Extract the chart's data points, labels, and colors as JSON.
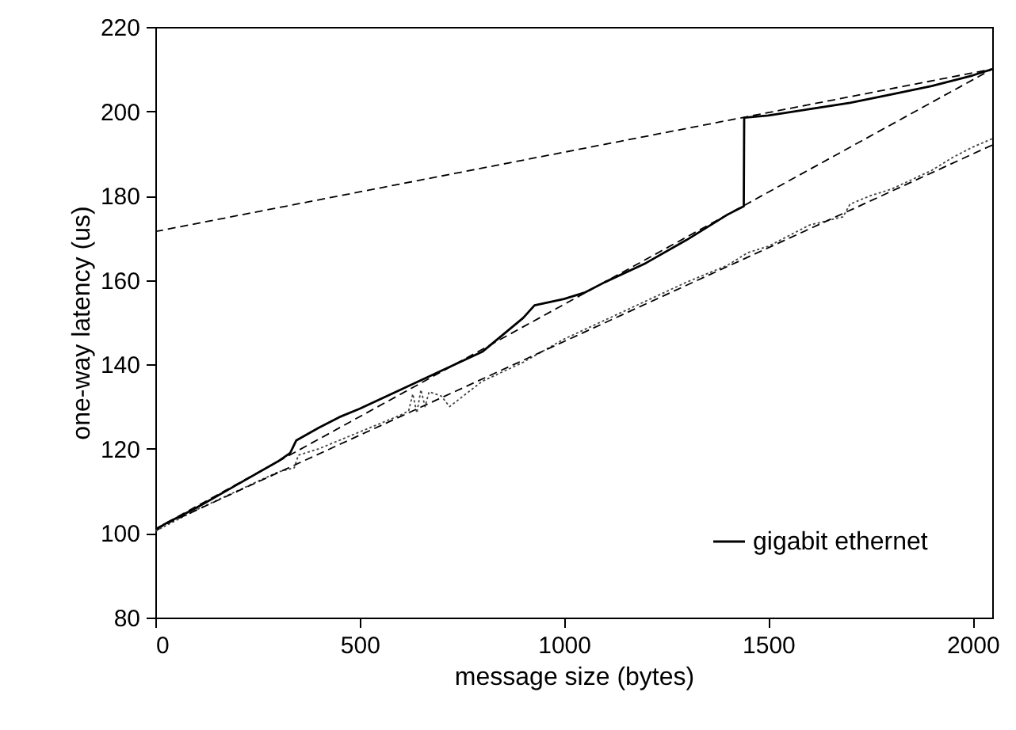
{
  "chart_data": {
    "type": "line",
    "xlabel": "message size (bytes)",
    "ylabel": "one-way latency (us)",
    "xlim": [
      0,
      2048
    ],
    "ylim": [
      80,
      220
    ],
    "xticks": [
      0,
      500,
      1000,
      1500,
      2000
    ],
    "yticks": [
      80,
      100,
      120,
      140,
      160,
      180,
      200,
      220
    ],
    "grid": false,
    "legend": "bottom right",
    "series": [
      {
        "name": "gigabit ethernet",
        "color": "#000000",
        "line_style": "solid",
        "x": [
          0,
          20,
          50,
          100,
          200,
          300,
          330,
          345,
          400,
          450,
          500,
          600,
          700,
          800,
          900,
          928,
          1000,
          1050,
          1100,
          1200,
          1300,
          1350,
          1400,
          1440,
          1441,
          1500,
          1600,
          1700,
          1800,
          1900,
          2000,
          2048
        ],
        "values": [
          100.5,
          102,
          103.5,
          106,
          111.5,
          117,
          119,
          122,
          125,
          127.5,
          129.5,
          134,
          138.5,
          143,
          151,
          154,
          155.5,
          157,
          159.5,
          164,
          169.5,
          172.5,
          175.5,
          177.5,
          198.5,
          199,
          200.5,
          202,
          204,
          206,
          208.5,
          210
        ]
      },
      {
        "color": "#444444",
        "line_style": "dotted",
        "x": [
          0,
          100,
          200,
          300,
          340,
          350,
          400,
          500,
          600,
          620,
          630,
          640,
          650,
          660,
          670,
          700,
          720,
          760,
          800,
          900,
          1000,
          1100,
          1200,
          1300,
          1400,
          1450,
          1500,
          1600,
          1683,
          1700,
          1750,
          1800,
          1900,
          1950,
          2000,
          2048
        ],
        "values": [
          100.5,
          105.5,
          110,
          114.5,
          115.5,
          118.5,
          120,
          124,
          128,
          129,
          133,
          128.5,
          134,
          130,
          133.5,
          132.5,
          130,
          133,
          136,
          140.5,
          146,
          150.5,
          155,
          159.5,
          163.5,
          166.5,
          168,
          173,
          175,
          178,
          180,
          181.5,
          186,
          189,
          191.5,
          193.5
        ]
      },
      {
        "type": "line",
        "color": "#000000",
        "line_style": "dashed",
        "x": [
          0,
          2048
        ],
        "values": [
          101,
          210
        ]
      },
      {
        "type": "line",
        "color": "#000000",
        "line_style": "dashed",
        "x": [
          0,
          2048
        ],
        "values": [
          171.5,
          210
        ]
      },
      {
        "type": "line",
        "color": "#000000",
        "line_style": "dashed",
        "x": [
          0,
          2048
        ],
        "values": [
          101,
          192
        ]
      }
    ]
  }
}
